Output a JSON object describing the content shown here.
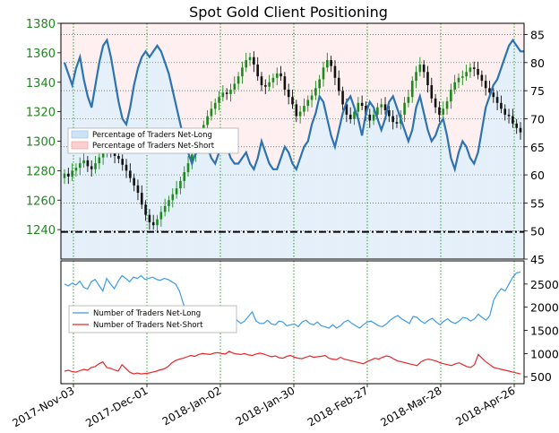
{
  "chart_data": [
    {
      "type": "candlestick+line",
      "title": "Spot Gold Client Positioning",
      "x_ticks": [
        "2017-Nov-03",
        "2017-Dec-01",
        "2018-Jan-02",
        "2018-Jan-30",
        "2018-Feb-27",
        "2018-Mar-28",
        "2018-Apr-26"
      ],
      "left_axis": {
        "range": [
          1220,
          1380
        ],
        "ticks": [
          1240,
          1260,
          1280,
          1300,
          1320,
          1340,
          1360,
          1380
        ],
        "color": "#1a8a1a"
      },
      "right_axis": {
        "range": [
          45,
          87
        ],
        "ticks": [
          45,
          50,
          55,
          60,
          65,
          70,
          75,
          80,
          85
        ]
      },
      "reference_line": {
        "axis": "left",
        "value": 1238.5,
        "style": "dash-dot"
      },
      "legend": {
        "placement": "upper-left",
        "entries": [
          {
            "label": "Percentage of Traders Net-Long",
            "color": "#9fc9ee"
          },
          {
            "label": "Percentage of Traders Net-Short",
            "color": "#f5a6a6"
          }
        ]
      },
      "price_close": [
        1278,
        1276,
        1280,
        1282,
        1285,
        1287,
        1283,
        1281,
        1285,
        1289,
        1292,
        1295,
        1293,
        1290,
        1288,
        1284,
        1280,
        1275,
        1270,
        1265,
        1257,
        1250,
        1245,
        1243,
        1247,
        1252,
        1256,
        1260,
        1264,
        1268,
        1273,
        1279,
        1285,
        1291,
        1298,
        1304,
        1311,
        1317,
        1322,
        1326,
        1330,
        1333,
        1332,
        1335,
        1339,
        1344,
        1350,
        1355,
        1357,
        1352,
        1344,
        1338,
        1337,
        1340,
        1343,
        1346,
        1344,
        1335,
        1330,
        1325,
        1317,
        1320,
        1324,
        1328,
        1331,
        1336,
        1342,
        1350,
        1355,
        1351,
        1343,
        1334,
        1325,
        1318,
        1315,
        1320,
        1326,
        1324,
        1318,
        1314,
        1318,
        1323,
        1325,
        1321,
        1317,
        1313,
        1312,
        1318,
        1326,
        1330,
        1341,
        1347,
        1352,
        1347,
        1338,
        1329,
        1323,
        1318,
        1322,
        1327,
        1335,
        1340,
        1343,
        1344,
        1347,
        1350,
        1349,
        1345,
        1341,
        1336,
        1333,
        1330,
        1326,
        1322,
        1318,
        1317,
        1312,
        1309,
        1306
      ],
      "pct_net_long": [
        80,
        78,
        76,
        79,
        81,
        77,
        74,
        72,
        76,
        80,
        83,
        84,
        81,
        77,
        73,
        70,
        69,
        72,
        76,
        79,
        81,
        82,
        81,
        82,
        83,
        82,
        80,
        78,
        75,
        72,
        69,
        66,
        64,
        62,
        64,
        66,
        68,
        65,
        63,
        62,
        64,
        66,
        65,
        63,
        62,
        62,
        63,
        64,
        62,
        61,
        63,
        66,
        64,
        62,
        61,
        61,
        63,
        65,
        64,
        62,
        61,
        63,
        65,
        66,
        69,
        71,
        74,
        73,
        70,
        67,
        65,
        68,
        71,
        73,
        74,
        72,
        70,
        67,
        71,
        73,
        72,
        70,
        68,
        70,
        73,
        74,
        72,
        70,
        68,
        66,
        68,
        72,
        74,
        71,
        68,
        66,
        67,
        69,
        70,
        67,
        63,
        61,
        64,
        66,
        65,
        63,
        62,
        64,
        68,
        72,
        74,
        76,
        77,
        79,
        81,
        83,
        84,
        83,
        82,
        82
      ],
      "subplot": {
        "y_range": [
          350,
          3000
        ],
        "ticks": [
          500,
          1000,
          1500,
          2000,
          2500
        ],
        "legend": {
          "placement": "center-left",
          "entries": [
            {
              "label": "Number of Traders Net-Long",
              "color": "#3d9be9"
            },
            {
              "label": "Number of Traders Net-Short",
              "color": "#e8262a"
            }
          ]
        },
        "net_long": [
          2500,
          2460,
          2520,
          2480,
          2560,
          2430,
          2390,
          2550,
          2600,
          2470,
          2350,
          2620,
          2500,
          2400,
          2560,
          2680,
          2620,
          2550,
          2650,
          2620,
          2680,
          2600,
          2620,
          2650,
          2600,
          2580,
          2620,
          2600,
          2550,
          2500,
          2350,
          2080,
          1900,
          1800,
          1820,
          1850,
          1750,
          1700,
          1820,
          1950,
          1780,
          1720,
          1680,
          1800,
          1850,
          1720,
          1650,
          1700,
          1800,
          1900,
          1700,
          1650,
          1650,
          1720,
          1640,
          1620,
          1700,
          1680,
          1600,
          1620,
          1640,
          1580,
          1680,
          1720,
          1650,
          1620,
          1680,
          1600,
          1580,
          1550,
          1620,
          1550,
          1600,
          1680,
          1720,
          1650,
          1600,
          1550,
          1620,
          1680,
          1700,
          1650,
          1600,
          1580,
          1640,
          1720,
          1780,
          1820,
          1750,
          1700,
          1650,
          1800,
          1780,
          1700,
          1650,
          1720,
          1760,
          1680,
          1620,
          1700,
          1750,
          1680,
          1650,
          1700,
          1780,
          1760,
          1700,
          1750,
          1850,
          1780,
          1720,
          1820,
          2150,
          2300,
          2400,
          2350,
          2500,
          2650,
          2740,
          2760
        ],
        "net_short": [
          620,
          640,
          610,
          600,
          630,
          660,
          640,
          700,
          720,
          780,
          820,
          700,
          680,
          650,
          620,
          760,
          680,
          600,
          560,
          580,
          560,
          570,
          580,
          600,
          620,
          650,
          670,
          720,
          800,
          850,
          880,
          900,
          930,
          960,
          940,
          980,
          1000,
          990,
          980,
          1010,
          1020,
          1000,
          990,
          1050,
          1010,
          990,
          980,
          1000,
          970,
          960,
          990,
          1010,
          990,
          960,
          930,
          950,
          910,
          900,
          940,
          960,
          920,
          900,
          890,
          920,
          950,
          920,
          930,
          940,
          960,
          900,
          880,
          870,
          920,
          880,
          860,
          840,
          820,
          800,
          780,
          830,
          860,
          900,
          880,
          920,
          950,
          930,
          880,
          840,
          820,
          800,
          780,
          760,
          740,
          820,
          860,
          880,
          860,
          840,
          800,
          780,
          760,
          740,
          780,
          800,
          760,
          720,
          700,
          760,
          980,
          900,
          820,
          760,
          700,
          680,
          660,
          640,
          620,
          600,
          580,
          560
        ]
      }
    }
  ]
}
